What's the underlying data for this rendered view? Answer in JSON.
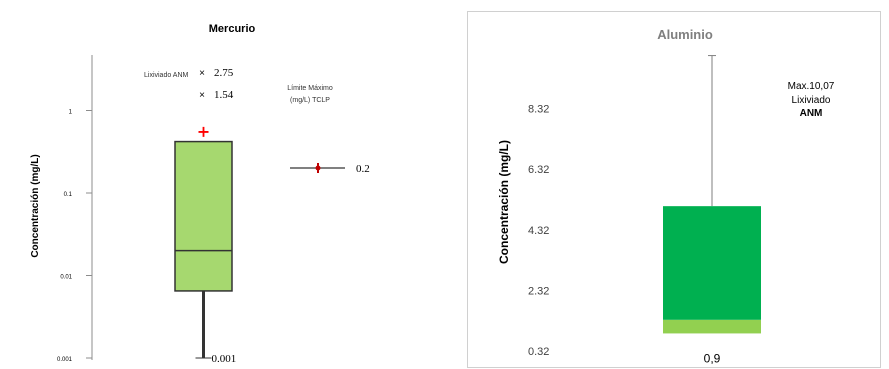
{
  "chart_data": [
    {
      "type": "box",
      "title": "Mercurio",
      "ylabel": "Concentración (mg/L)",
      "yscale": "log",
      "ylim": [
        0.001,
        10
      ],
      "yticks": [
        {
          "value": 1,
          "label": "1"
        },
        {
          "value": 0.1,
          "label": "0.1"
        },
        {
          "value": 0.01,
          "label": "0.01"
        },
        {
          "value": 0.001,
          "label": "0.001"
        }
      ],
      "box": {
        "whisker_low": 0.001,
        "q1": 0.0065,
        "median": 0.02,
        "q3": 0.42,
        "outlier": 0.55
      },
      "annotations": {
        "lixiviado_label": "Lixiviado ANM",
        "lixiviado_values": [
          {
            "marker": "×",
            "value": 2.75,
            "label": "2.75"
          },
          {
            "marker": "×",
            "value": 1.54,
            "label": "1.54"
          }
        ],
        "limit_label_line1": "Límite Máximo",
        "limit_label_line2": "(mg/L) TCLP",
        "limit_value": 0.2,
        "limit_value_label": "0.2",
        "min_label": "0.001"
      },
      "colors": {
        "box": "#a6d86f",
        "outlier": "#ff0000",
        "limit_marker": "#c00000"
      }
    },
    {
      "type": "box",
      "title": "Aluminio",
      "ylabel": "Concentración (mg/L)",
      "ylim": [
        0.32,
        10.32
      ],
      "yticks": [
        {
          "value": 0.32,
          "label": "0.32"
        },
        {
          "value": 2.32,
          "label": "2.32"
        },
        {
          "value": 4.32,
          "label": "4.32"
        },
        {
          "value": 6.32,
          "label": "6.32"
        },
        {
          "value": 8.32,
          "label": "8.32"
        }
      ],
      "box": {
        "min": 0.9,
        "q1": 0.9,
        "median": 1.35,
        "q3": 5.1,
        "max": 10.07
      },
      "annotations": {
        "min_label": "0,9",
        "max_line1": "Max.10,07",
        "max_line2": "Lixiviado",
        "max_line3": "ANM"
      },
      "colors": {
        "lower_box": "#92d050",
        "upper_box": "#00b050",
        "title": "#7f7f7f"
      }
    }
  ]
}
